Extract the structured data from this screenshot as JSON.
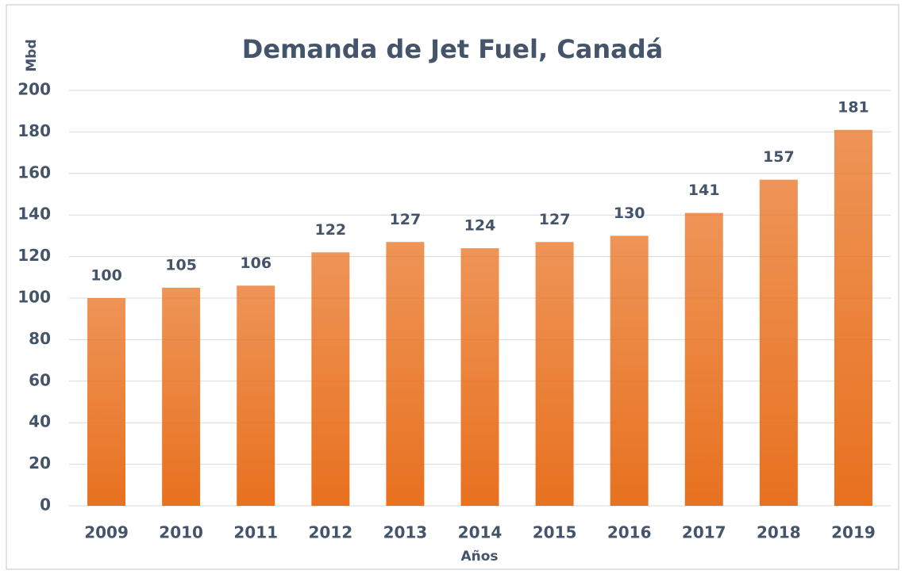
{
  "chart_data": {
    "type": "bar",
    "title": "Demanda de Jet Fuel, Canadá",
    "y_label": "Mbd",
    "x_label": "Años",
    "categories": [
      "2009",
      "2010",
      "2011",
      "2012",
      "2013",
      "2014",
      "2015",
      "2016",
      "2017",
      "2018",
      "2019"
    ],
    "values": [
      100,
      105,
      106,
      122,
      127,
      124,
      127,
      130,
      141,
      157,
      181
    ],
    "color": "#e8711f",
    "ylim": [
      0,
      200
    ],
    "yticks": [
      0,
      20,
      40,
      60,
      80,
      100,
      120,
      140,
      160,
      180,
      200
    ],
    "grid": true
  }
}
